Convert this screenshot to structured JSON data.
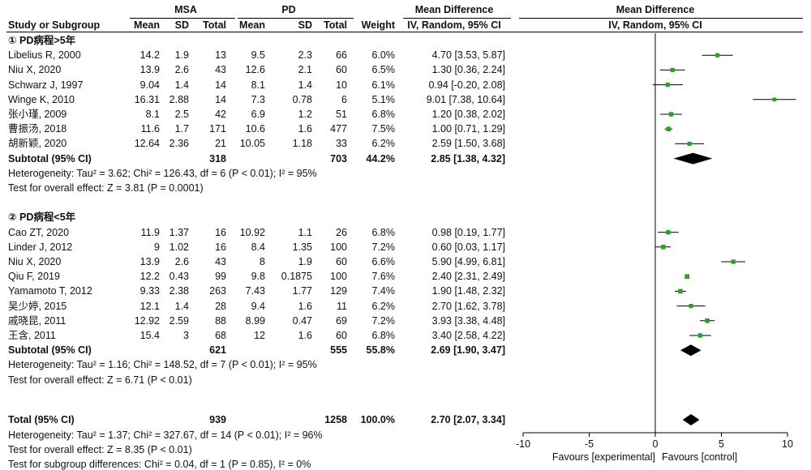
{
  "header": {
    "group1": "MSA",
    "group2": "PD",
    "md_title": "Mean Difference",
    "md_method": "IV, Random, 95% CI",
    "plot_title": "Mean Difference",
    "plot_method": "IV, Random, 95% CI",
    "columns": [
      "Study or Subgroup",
      "Mean",
      "SD",
      "Total",
      "Mean",
      "SD",
      "Total",
      "Weight"
    ]
  },
  "subgroups": [
    {
      "label": "① PD病程>5年",
      "studies": [
        {
          "name": "Libelius R, 2000",
          "m1": "14.2",
          "sd1": "1.9",
          "n1": "13",
          "m2": "9.5",
          "sd2": "2.3",
          "n2": "66",
          "weight": "6.0%",
          "ci": "4.70 [3.53, 5.87]",
          "md": 4.7,
          "lo": 3.53,
          "hi": 5.87
        },
        {
          "name": "Niu X, 2020",
          "m1": "13.9",
          "sd1": "2.6",
          "n1": "43",
          "m2": "12.6",
          "sd2": "2.1",
          "n2": "60",
          "weight": "6.5%",
          "ci": "1.30 [0.36, 2.24]",
          "md": 1.3,
          "lo": 0.36,
          "hi": 2.24
        },
        {
          "name": "Schwarz J, 1997",
          "m1": "9.04",
          "sd1": "1.4",
          "n1": "14",
          "m2": "8.1",
          "sd2": "1.4",
          "n2": "10",
          "weight": "6.1%",
          "ci": "0.94 [-0.20, 2.08]",
          "md": 0.94,
          "lo": -0.2,
          "hi": 2.08
        },
        {
          "name": "Winge K, 2010",
          "m1": "16.31",
          "sd1": "2.88",
          "n1": "14",
          "m2": "7.3",
          "sd2": "0.78",
          "n2": "6",
          "weight": "5.1%",
          "ci": "9.01 [7.38, 10.64]",
          "md": 9.01,
          "lo": 7.38,
          "hi": 10.64
        },
        {
          "name": "张小瑾, 2009",
          "m1": "8.1",
          "sd1": "2.5",
          "n1": "42",
          "m2": "6.9",
          "sd2": "1.2",
          "n2": "51",
          "weight": "6.8%",
          "ci": "1.20 [0.38, 2.02]",
          "md": 1.2,
          "lo": 0.38,
          "hi": 2.02
        },
        {
          "name": "曹振汤, 2018",
          "m1": "11.6",
          "sd1": "1.7",
          "n1": "171",
          "m2": "10.6",
          "sd2": "1.6",
          "n2": "477",
          "weight": "7.5%",
          "ci": "1.00 [0.71, 1.29]",
          "md": 1.0,
          "lo": 0.71,
          "hi": 1.29
        },
        {
          "name": "胡新颖, 2020",
          "m1": "12.64",
          "sd1": "2.36",
          "n1": "21",
          "m2": "10.05",
          "sd2": "1.18",
          "n2": "33",
          "weight": "6.2%",
          "ci": "2.59 [1.50, 3.68]",
          "md": 2.59,
          "lo": 1.5,
          "hi": 3.68
        }
      ],
      "subtotal": {
        "label": "Subtotal (95% CI)",
        "n1": "318",
        "n2": "703",
        "weight": "44.2%",
        "ci": "2.85 [1.38, 4.32]",
        "md": 2.85,
        "lo": 1.38,
        "hi": 4.32
      },
      "heterogeneity": "Heterogeneity: Tau² = 3.62; Chi² = 126.43, df = 6 (P < 0.01); I² = 95%",
      "overall": "Test for overall effect: Z = 3.81 (P = 0.0001)"
    },
    {
      "label": "② PD病程<5年",
      "studies": [
        {
          "name": "Cao ZT, 2020",
          "m1": "11.9",
          "sd1": "1.37",
          "n1": "16",
          "m2": "10.92",
          "sd2": "1.1",
          "n2": "26",
          "weight": "6.8%",
          "ci": "0.98 [0.19, 1.77]",
          "md": 0.98,
          "lo": 0.19,
          "hi": 1.77
        },
        {
          "name": "Linder J, 2012",
          "m1": "9",
          "sd1": "1.02",
          "n1": "16",
          "m2": "8.4",
          "sd2": "1.35",
          "n2": "100",
          "weight": "7.2%",
          "ci": "0.60 [0.03, 1.17]",
          "md": 0.6,
          "lo": 0.03,
          "hi": 1.17
        },
        {
          "name": "Niu X, 2020",
          "m1": "13.9",
          "sd1": "2.6",
          "n1": "43",
          "m2": "8",
          "sd2": "1.9",
          "n2": "60",
          "weight": "6.6%",
          "ci": "5.90 [4.99, 6.81]",
          "md": 5.9,
          "lo": 4.99,
          "hi": 6.81
        },
        {
          "name": "Qiu F, 2019",
          "m1": "12.2",
          "sd1": "0.43",
          "n1": "99",
          "m2": "9.8",
          "sd2": "0.1875",
          "n2": "100",
          "weight": "7.6%",
          "ci": "2.40 [2.31, 2.49]",
          "md": 2.4,
          "lo": 2.31,
          "hi": 2.49
        },
        {
          "name": "Yamamoto T, 2012",
          "m1": "9.33",
          "sd1": "2.38",
          "n1": "263",
          "m2": "7.43",
          "sd2": "1.77",
          "n2": "129",
          "weight": "7.4%",
          "ci": "1.90 [1.48, 2.32]",
          "md": 1.9,
          "lo": 1.48,
          "hi": 2.32
        },
        {
          "name": "吴少婷, 2015",
          "m1": "12.1",
          "sd1": "1.4",
          "n1": "28",
          "m2": "9.4",
          "sd2": "1.6",
          "n2": "11",
          "weight": "6.2%",
          "ci": "2.70 [1.62, 3.78]",
          "md": 2.7,
          "lo": 1.62,
          "hi": 3.78
        },
        {
          "name": "戚晓昆, 2011",
          "m1": "12.92",
          "sd1": "2.59",
          "n1": "88",
          "m2": "8.99",
          "sd2": "0.47",
          "n2": "69",
          "weight": "7.2%",
          "ci": "3.93 [3.38, 4.48]",
          "md": 3.93,
          "lo": 3.38,
          "hi": 4.48
        },
        {
          "name": "王含, 2011",
          "m1": "15.4",
          "sd1": "3",
          "n1": "68",
          "m2": "12",
          "sd2": "1.6",
          "n2": "60",
          "weight": "6.8%",
          "ci": "3.40 [2.58, 4.22]",
          "md": 3.4,
          "lo": 2.58,
          "hi": 4.22
        }
      ],
      "subtotal": {
        "label": "Subtotal (95% CI)",
        "n1": "621",
        "n2": "555",
        "weight": "55.8%",
        "ci": "2.69 [1.90, 3.47]",
        "md": 2.69,
        "lo": 1.9,
        "hi": 3.47
      },
      "heterogeneity": "Heterogeneity: Tau² = 1.16; Chi² = 148.52, df = 7 (P < 0.01); I² = 95%",
      "overall": "Test for overall effect: Z = 6.71 (P < 0.01)"
    }
  ],
  "total": {
    "label": "Total (95% CI)",
    "n1": "939",
    "n2": "1258",
    "weight": "100.0%",
    "ci": "2.70 [2.07, 3.34]",
    "md": 2.7,
    "lo": 2.07,
    "hi": 3.34
  },
  "total_heterogeneity": "Heterogeneity: Tau² = 1.37; Chi² = 327.67, df = 14 (P < 0.01); I² = 96%",
  "total_overall": "Test for overall effect: Z = 8.35 (P < 0.01)",
  "subgroup_diff": "Test for subgroup differences: Chi² = 0.04, df = 1 (P = 0.85), I² = 0%",
  "axis": {
    "ticks": [
      -10,
      -5,
      0,
      5,
      10
    ],
    "tick_labels": [
      "-10",
      "-5",
      "0",
      "5",
      "10"
    ],
    "left_label": "Favours [experimental]",
    "right_label": "Favours [control]"
  },
  "colors": {
    "point": "#2ca02c",
    "line": "#000000",
    "diamond": "#000000"
  },
  "chart_data": {
    "type": "scatter",
    "title": "Mean Difference",
    "xlabel": "",
    "xlim": [
      -10,
      10
    ],
    "grid": false,
    "series": [
      {
        "name": "① PD病程>5年",
        "points": [
          {
            "label": "Libelius R, 2000",
            "x": 4.7,
            "ci": [
              3.53,
              5.87
            ]
          },
          {
            "label": "Niu X, 2020",
            "x": 1.3,
            "ci": [
              0.36,
              2.24
            ]
          },
          {
            "label": "Schwarz J, 1997",
            "x": 0.94,
            "ci": [
              -0.2,
              2.08
            ]
          },
          {
            "label": "Winge K, 2010",
            "x": 9.01,
            "ci": [
              7.38,
              10.64
            ]
          },
          {
            "label": "张小瑾, 2009",
            "x": 1.2,
            "ci": [
              0.38,
              2.02
            ]
          },
          {
            "label": "曹振汤, 2018",
            "x": 1.0,
            "ci": [
              0.71,
              1.29
            ]
          },
          {
            "label": "胡新颖, 2020",
            "x": 2.59,
            "ci": [
              1.5,
              3.68
            ]
          }
        ],
        "pooled": {
          "x": 2.85,
          "ci": [
            1.38,
            4.32
          ]
        }
      },
      {
        "name": "② PD病程<5年",
        "points": [
          {
            "label": "Cao ZT, 2020",
            "x": 0.98,
            "ci": [
              0.19,
              1.77
            ]
          },
          {
            "label": "Linder J, 2012",
            "x": 0.6,
            "ci": [
              0.03,
              1.17
            ]
          },
          {
            "label": "Niu X, 2020",
            "x": 5.9,
            "ci": [
              4.99,
              6.81
            ]
          },
          {
            "label": "Qiu F, 2019",
            "x": 2.4,
            "ci": [
              2.31,
              2.49
            ]
          },
          {
            "label": "Yamamoto T, 2012",
            "x": 1.9,
            "ci": [
              1.48,
              2.32
            ]
          },
          {
            "label": "吴少婷, 2015",
            "x": 2.7,
            "ci": [
              1.62,
              3.78
            ]
          },
          {
            "label": "戚晓昆, 2011",
            "x": 3.93,
            "ci": [
              3.38,
              4.48
            ]
          },
          {
            "label": "王含, 2011",
            "x": 3.4,
            "ci": [
              2.58,
              4.22
            ]
          }
        ],
        "pooled": {
          "x": 2.69,
          "ci": [
            1.9,
            3.47
          ]
        }
      }
    ],
    "total": {
      "x": 2.7,
      "ci": [
        2.07,
        3.34
      ]
    }
  }
}
